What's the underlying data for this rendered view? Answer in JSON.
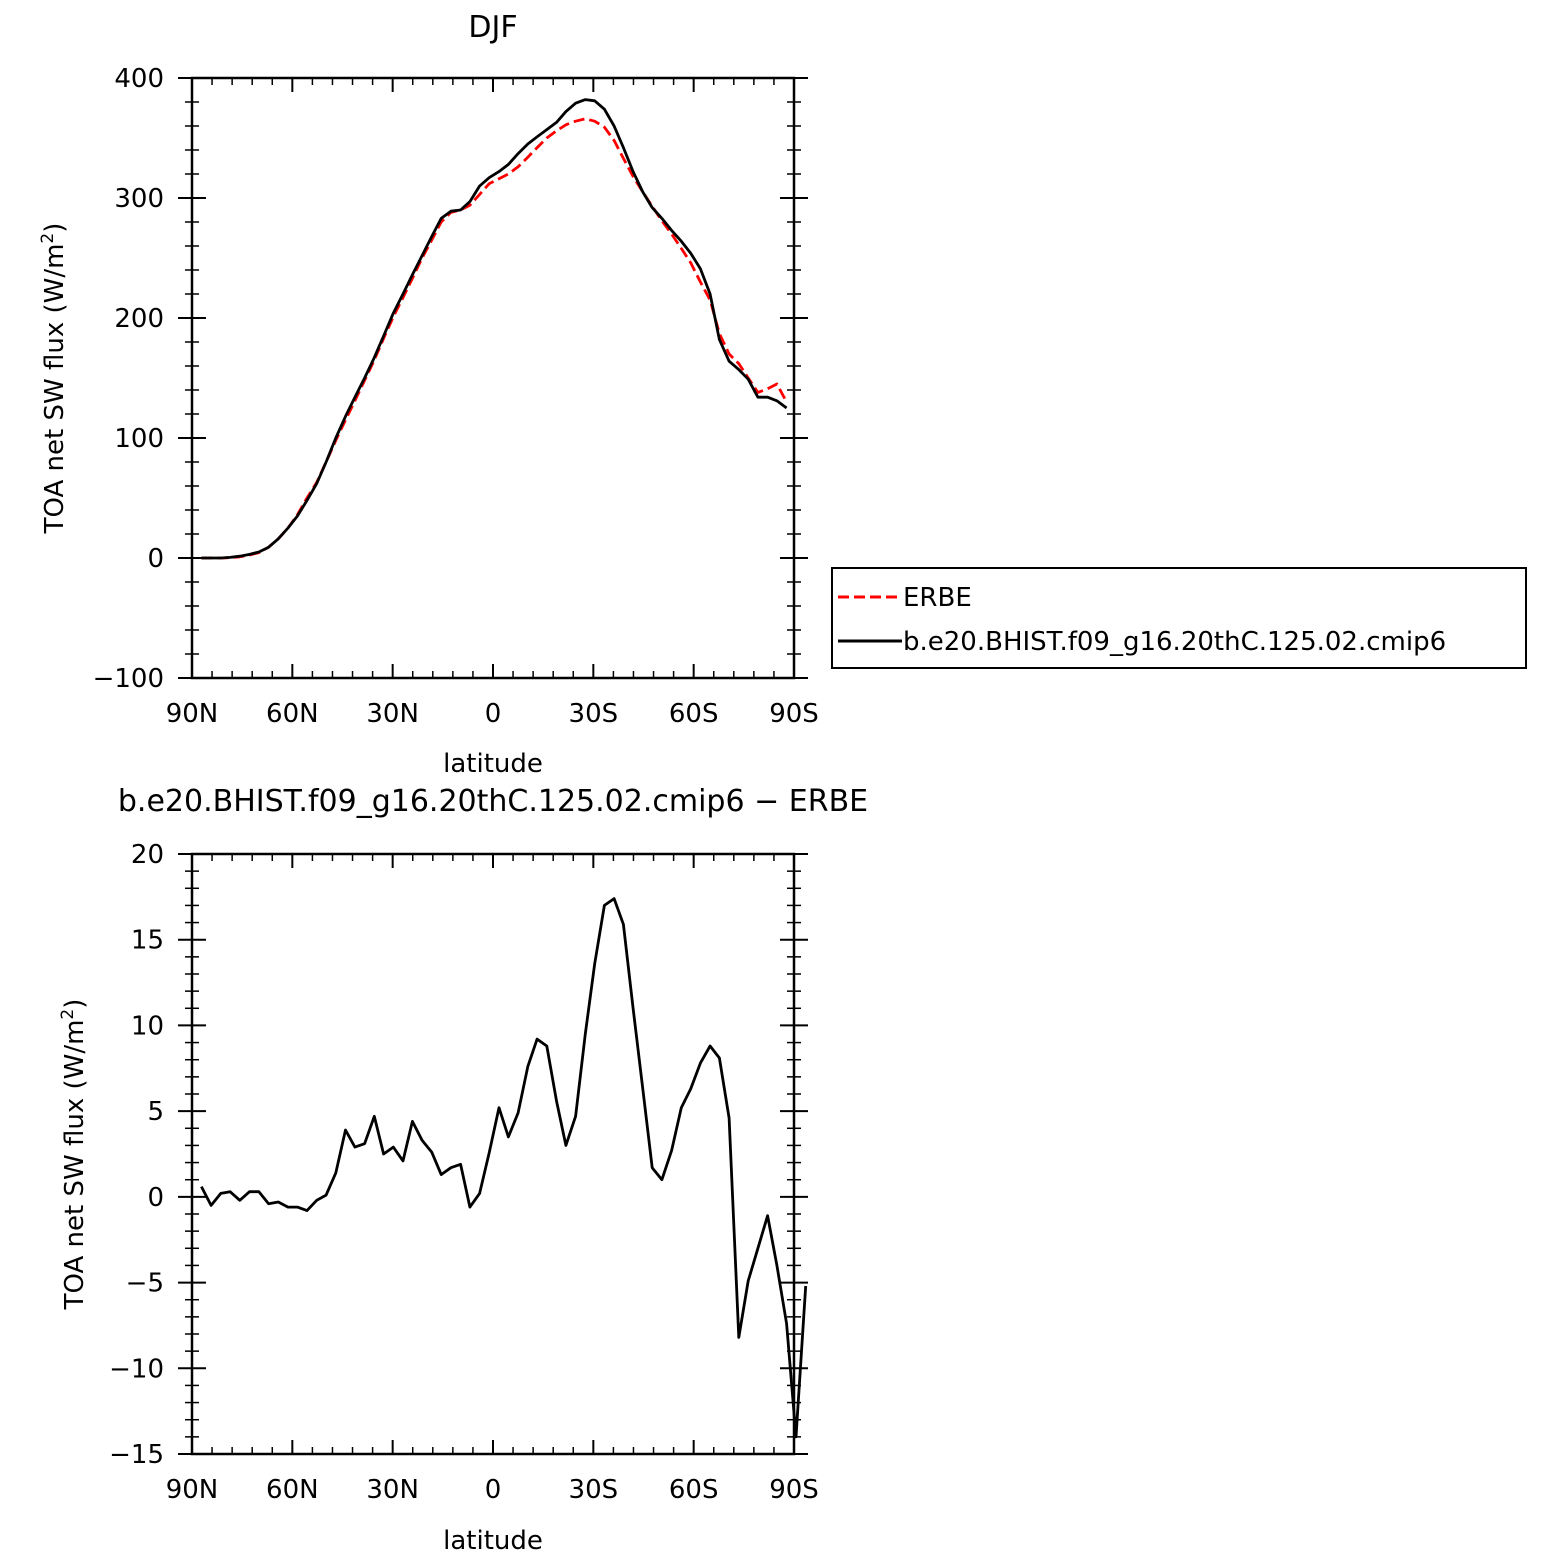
{
  "chart_data": [
    {
      "type": "line",
      "title": "DJF",
      "xlabel": "latitude",
      "ylabel": "TOA net SW flux (W/m²)",
      "ylabel_parts": [
        "TOA net SW flux (W/m",
        "2",
        ")"
      ],
      "xlim": [
        -90,
        90
      ],
      "ylim": [
        -100,
        400
      ],
      "xticks": [
        -90,
        -60,
        -30,
        0,
        30,
        60,
        90
      ],
      "xticklabels": [
        "90N",
        "60N",
        "30N",
        "0",
        "30S",
        "60S",
        "90S"
      ],
      "yticks": [
        -100,
        0,
        100,
        200,
        300,
        400
      ],
      "yticklabels": [
        "−100",
        "0",
        "100",
        "200",
        "300",
        "400"
      ],
      "legend_placement": "right",
      "series": [
        {
          "name": "ERBE",
          "color": "#ff0000",
          "dashed": true,
          "points": [
            [
              -87.2,
              0
            ],
            [
              -84.3,
              0
            ],
            [
              -81.4,
              0
            ],
            [
              -78.6,
              0.3
            ],
            [
              -75.7,
              1
            ],
            [
              -72.8,
              2.5
            ],
            [
              -70,
              4.5
            ],
            [
              -67.1,
              9
            ],
            [
              -64.2,
              16
            ],
            [
              -61.3,
              25
            ],
            [
              -58.5,
              36
            ],
            [
              -55.6,
              50
            ],
            [
              -52.7,
              63
            ],
            [
              -49.9,
              80
            ],
            [
              -47,
              98
            ],
            [
              -44.1,
              115
            ],
            [
              -41.3,
              131
            ],
            [
              -38.4,
              148
            ],
            [
              -35.5,
              165
            ],
            [
              -32.7,
              183
            ],
            [
              -29.8,
              201
            ],
            [
              -26.9,
              217
            ],
            [
              -24.1,
              233
            ],
            [
              -21.2,
              250
            ],
            [
              -18.3,
              265
            ],
            [
              -15.5,
              280
            ],
            [
              -12.6,
              288
            ],
            [
              -9.7,
              290
            ],
            [
              -6.9,
              294
            ],
            [
              -4,
              303
            ],
            [
              -1.1,
              312
            ],
            [
              1.8,
              316
            ],
            [
              4.6,
              320
            ],
            [
              7.5,
              326
            ],
            [
              10.4,
              334
            ],
            [
              13.2,
              342
            ],
            [
              16.1,
              350
            ],
            [
              19,
              356
            ],
            [
              21.8,
              361
            ],
            [
              24.7,
              364
            ],
            [
              27.6,
              366
            ],
            [
              30.4,
              364
            ],
            [
              33.3,
              359
            ],
            [
              36.2,
              348
            ],
            [
              39,
              333
            ],
            [
              41.9,
              318
            ],
            [
              44.8,
              305
            ],
            [
              47.6,
              293
            ],
            [
              50.5,
              281
            ],
            [
              53.4,
              270
            ],
            [
              56.3,
              258
            ],
            [
              59.1,
              246
            ],
            [
              62,
              230
            ],
            [
              64.9,
              215
            ],
            [
              67.7,
              187
            ],
            [
              70.6,
              170
            ],
            [
              73.5,
              162
            ],
            [
              76.3,
              150
            ],
            [
              79.2,
              138
            ],
            [
              82.1,
              141
            ],
            [
              84.9,
              145
            ],
            [
              87.8,
              130
            ]
          ]
        },
        {
          "name": "b.e20.BHIST.f09_g16.20thC.125.02.cmip6",
          "color": "#000000",
          "dashed": false,
          "points": [
            [
              -87.2,
              0
            ],
            [
              -84.3,
              0
            ],
            [
              -81.4,
              0
            ],
            [
              -78.6,
              0.5
            ],
            [
              -75.7,
              1.5
            ],
            [
              -72.8,
              3
            ],
            [
              -70,
              5
            ],
            [
              -67.1,
              9
            ],
            [
              -64.2,
              16
            ],
            [
              -61.3,
              25
            ],
            [
              -58.5,
              35
            ],
            [
              -55.6,
              48
            ],
            [
              -52.7,
              62
            ],
            [
              -49.9,
              80
            ],
            [
              -47,
              100
            ],
            [
              -44.1,
              118
            ],
            [
              -41.3,
              134
            ],
            [
              -38.4,
              150
            ],
            [
              -35.5,
              167
            ],
            [
              -32.7,
              185
            ],
            [
              -29.8,
              204
            ],
            [
              -26.9,
              220
            ],
            [
              -24.1,
              236
            ],
            [
              -21.2,
              252
            ],
            [
              -18.3,
              268
            ],
            [
              -15.5,
              283
            ],
            [
              -12.6,
              289
            ],
            [
              -9.7,
              290
            ],
            [
              -6.9,
              297
            ],
            [
              -4,
              310
            ],
            [
              -1.1,
              317
            ],
            [
              1.8,
              322
            ],
            [
              4.6,
              328
            ],
            [
              7.5,
              337
            ],
            [
              10.4,
              345
            ],
            [
              13.2,
              351
            ],
            [
              16.1,
              357
            ],
            [
              19,
              363
            ],
            [
              21.8,
              372
            ],
            [
              24.7,
              379
            ],
            [
              27.6,
              382
            ],
            [
              30.4,
              381
            ],
            [
              33.3,
              374
            ],
            [
              36.2,
              360
            ],
            [
              39,
              342
            ],
            [
              41.9,
              322
            ],
            [
              44.8,
              305
            ],
            [
              47.6,
              292
            ],
            [
              50.5,
              283
            ],
            [
              53.4,
              273
            ],
            [
              56.3,
              264
            ],
            [
              59.1,
              254
            ],
            [
              62,
              241
            ],
            [
              64.9,
              220
            ],
            [
              67.7,
              182
            ],
            [
              70.6,
              164
            ],
            [
              73.5,
              157
            ],
            [
              76.3,
              149
            ],
            [
              79.2,
              134
            ],
            [
              82.1,
              134
            ],
            [
              84.9,
              131
            ],
            [
              87.8,
              125
            ]
          ]
        }
      ]
    },
    {
      "type": "line",
      "title": "b.e20.BHIST.f09_g16.20thC.125.02.cmip6 − ERBE",
      "xlabel": "latitude",
      "ylabel": "TOA net SW flux (W/m²)",
      "ylabel_parts": [
        "TOA net SW flux (W/m",
        "2",
        ")"
      ],
      "xlim": [
        -90,
        90
      ],
      "ylim": [
        -15,
        20
      ],
      "xticks": [
        -90,
        -60,
        -30,
        0,
        30,
        60,
        90
      ],
      "xticklabels": [
        "90N",
        "60N",
        "30N",
        "0",
        "30S",
        "60S",
        "90S"
      ],
      "yticks": [
        -15,
        -10,
        -5,
        0,
        5,
        10,
        15,
        20
      ],
      "yticklabels": [
        "−15",
        "−10",
        "−5",
        "0",
        "5",
        "10",
        "15",
        "20"
      ],
      "series": [
        {
          "color": "#000000",
          "dashed": false,
          "points": [
            [
              -87.2,
              0.6
            ],
            [
              -84.3,
              -0.5
            ],
            [
              -81.4,
              0.2
            ],
            [
              -78.6,
              0.3
            ],
            [
              -75.7,
              -0.2
            ],
            [
              -72.8,
              0.3
            ],
            [
              -70,
              0.3
            ],
            [
              -67.1,
              -0.4
            ],
            [
              -64.2,
              -0.3
            ],
            [
              -61.3,
              -0.6
            ],
            [
              -58.5,
              -0.6
            ],
            [
              -55.6,
              -0.8
            ],
            [
              -52.7,
              -0.2
            ],
            [
              -49.9,
              0.1
            ],
            [
              -47,
              1.4
            ],
            [
              -44.1,
              3.9
            ],
            [
              -41.3,
              2.9
            ],
            [
              -38.4,
              3.1
            ],
            [
              -35.5,
              4.7
            ],
            [
              -32.7,
              2.5
            ],
            [
              -29.8,
              2.9
            ],
            [
              -26.9,
              2.1
            ],
            [
              -24.1,
              4.4
            ],
            [
              -21.2,
              3.3
            ],
            [
              -18.3,
              2.6
            ],
            [
              -15.5,
              1.3
            ],
            [
              -12.6,
              1.7
            ],
            [
              -9.7,
              1.9
            ],
            [
              -6.9,
              -0.6
            ],
            [
              -4,
              0.2
            ],
            [
              -1.1,
              2.6
            ],
            [
              1.8,
              5.2
            ],
            [
              4.6,
              3.5
            ],
            [
              7.5,
              4.9
            ],
            [
              10.4,
              7.6
            ],
            [
              13.2,
              9.2
            ],
            [
              16.1,
              8.8
            ],
            [
              19,
              5.6
            ],
            [
              21.8,
              3
            ],
            [
              24.7,
              4.7
            ],
            [
              27.6,
              9.5
            ],
            [
              30.4,
              13.6
            ],
            [
              33.3,
              17
            ],
            [
              36.2,
              17.4
            ],
            [
              39,
              15.9
            ],
            [
              41.9,
              11
            ],
            [
              44.8,
              6.3
            ],
            [
              47.6,
              1.7
            ],
            [
              50.5,
              1
            ],
            [
              53.4,
              2.7
            ],
            [
              56.3,
              5.2
            ],
            [
              59.1,
              6.3
            ],
            [
              62,
              7.8
            ],
            [
              64.9,
              8.8
            ],
            [
              67.7,
              8.1
            ],
            [
              70.6,
              4.6
            ],
            [
              73.5,
              -8.2
            ],
            [
              76.3,
              -4.9
            ],
            [
              79.2,
              -3
            ],
            [
              82.1,
              -1.1
            ],
            [
              84.9,
              -4
            ],
            [
              87.8,
              -7.4
            ],
            [
              90.6,
              -14
            ],
            [
              93.5,
              -5.2
            ]
          ]
        }
      ]
    }
  ],
  "legend": {
    "entries": [
      {
        "label": "ERBE",
        "color": "#ff0000",
        "dashed": true
      },
      {
        "label": "b.e20.BHIST.f09_g16.20thC.125.02.cmip6",
        "color": "#000000",
        "dashed": false
      }
    ]
  }
}
